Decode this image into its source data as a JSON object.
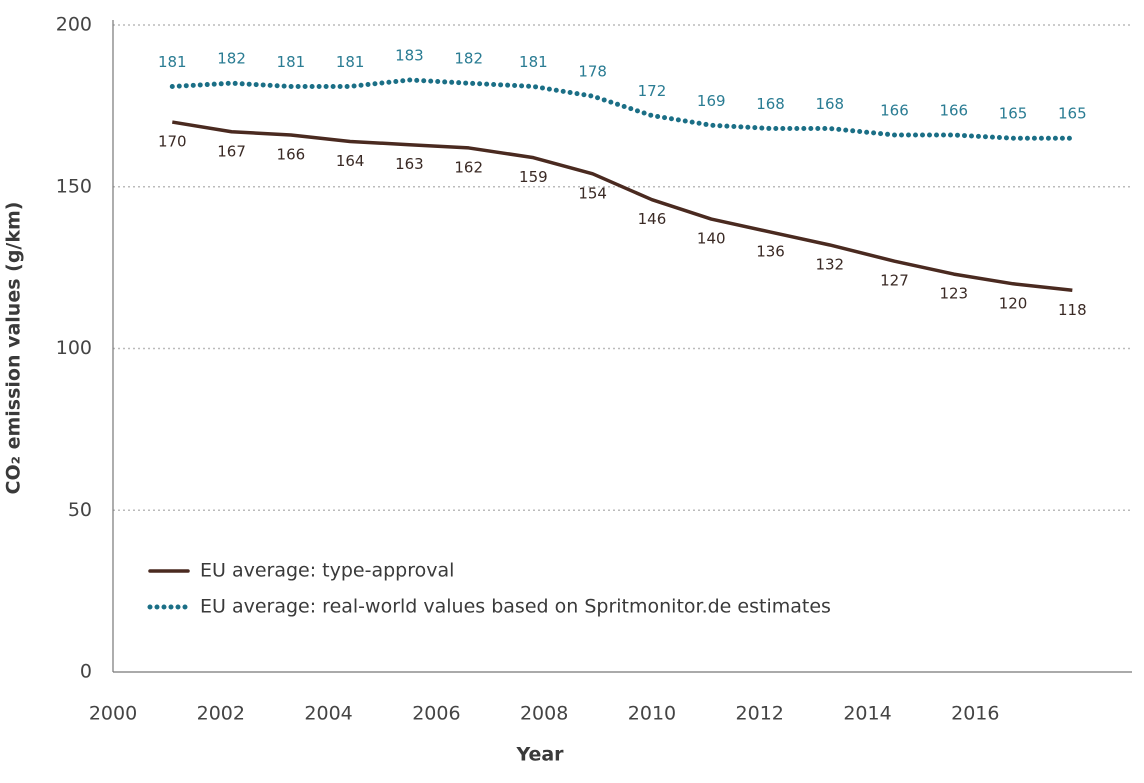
{
  "chart_data": {
    "type": "line",
    "x_label": "Year",
    "y_label": "CO₂ emission values (g/km)",
    "x": [
      2001.1,
      2002.2,
      2003.3,
      2004.4,
      2005.5,
      2006.6,
      2007.8,
      2008.9,
      2010.0,
      2011.1,
      2012.2,
      2013.3,
      2014.5,
      2015.6,
      2016.7,
      2017.8
    ],
    "series": [
      {
        "name": "EU average: type-approval",
        "color": "#4a2a20",
        "style": "solid",
        "values": [
          170,
          167,
          166,
          164,
          163,
          162,
          159,
          154,
          146,
          140,
          136,
          132,
          127,
          123,
          120,
          118
        ]
      },
      {
        "name": "EU average: real-world values based on Spritmonitor.de estimates",
        "color": "#1b6f86",
        "style": "dotted",
        "values": [
          181,
          182,
          181,
          181,
          183,
          182,
          181,
          178,
          172,
          169,
          168,
          168,
          166,
          166,
          165,
          165
        ]
      }
    ],
    "xlim": [
      2000,
      2019
    ],
    "xticks": [
      2000,
      2002,
      2004,
      2006,
      2008,
      2010,
      2012,
      2014,
      2016
    ],
    "ylim": [
      0,
      200
    ],
    "yticks": [
      0,
      50,
      100,
      150,
      200
    ],
    "grid": true,
    "legend": "lower left"
  }
}
